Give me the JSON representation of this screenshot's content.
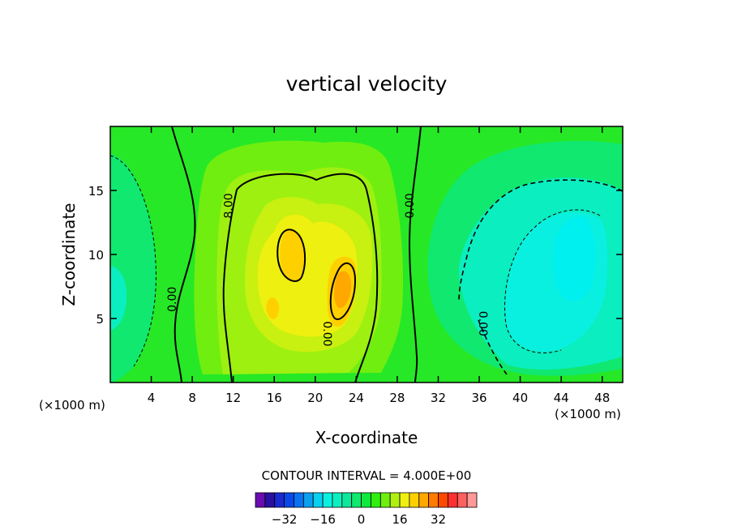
{
  "chart_data": {
    "type": "contour",
    "title": "vertical velocity",
    "xlabel": "X-coordinate",
    "ylabel": "Z-coordinate",
    "x_unit_label": "(×1000 m)",
    "z_unit_label": "(×1000 m)",
    "xlim": [
      0,
      50
    ],
    "ylim": [
      0,
      20
    ],
    "x_ticks": [
      4,
      8,
      12,
      16,
      20,
      24,
      28,
      32,
      36,
      40,
      44,
      48
    ],
    "y_ticks": [
      5,
      10,
      15
    ],
    "contour_labels": [
      {
        "text": "8.00",
        "x": 11.9,
        "y": 13.8,
        "angle": -90
      },
      {
        "text": "0.00",
        "x": 6.4,
        "y": 6.5,
        "angle": -90
      },
      {
        "text": "0.00",
        "x": 29.6,
        "y": 13.8,
        "angle": -90
      },
      {
        "text": "0.00",
        "x": 20.8,
        "y": 3.8,
        "angle": 90
      },
      {
        "text": "0.00",
        "x": 36.0,
        "y": 4.6,
        "angle": 90
      }
    ],
    "contour_interval_text": "CONTOUR INTERVAL = 4.000E+00",
    "colorbar": {
      "colors": [
        "#6a0db0",
        "#2a0fa0",
        "#1a2ad0",
        "#0a48ea",
        "#0a72f0",
        "#0aa0f0",
        "#0ad0f0",
        "#0af0e0",
        "#0aeec0",
        "#0ae89a",
        "#10e870",
        "#10e840",
        "#30ee10",
        "#70ee10",
        "#b0f010",
        "#eef010",
        "#ffd000",
        "#ffa800",
        "#ff7a00",
        "#ff4800",
        "#ff3030",
        "#ff6060",
        "#ff9898"
      ],
      "tick_labels": [
        "-32",
        "-16",
        "0",
        "16",
        "32"
      ],
      "tick_values": [
        -32,
        -16,
        0,
        16,
        32
      ],
      "range": [
        -44,
        48
      ]
    }
  }
}
